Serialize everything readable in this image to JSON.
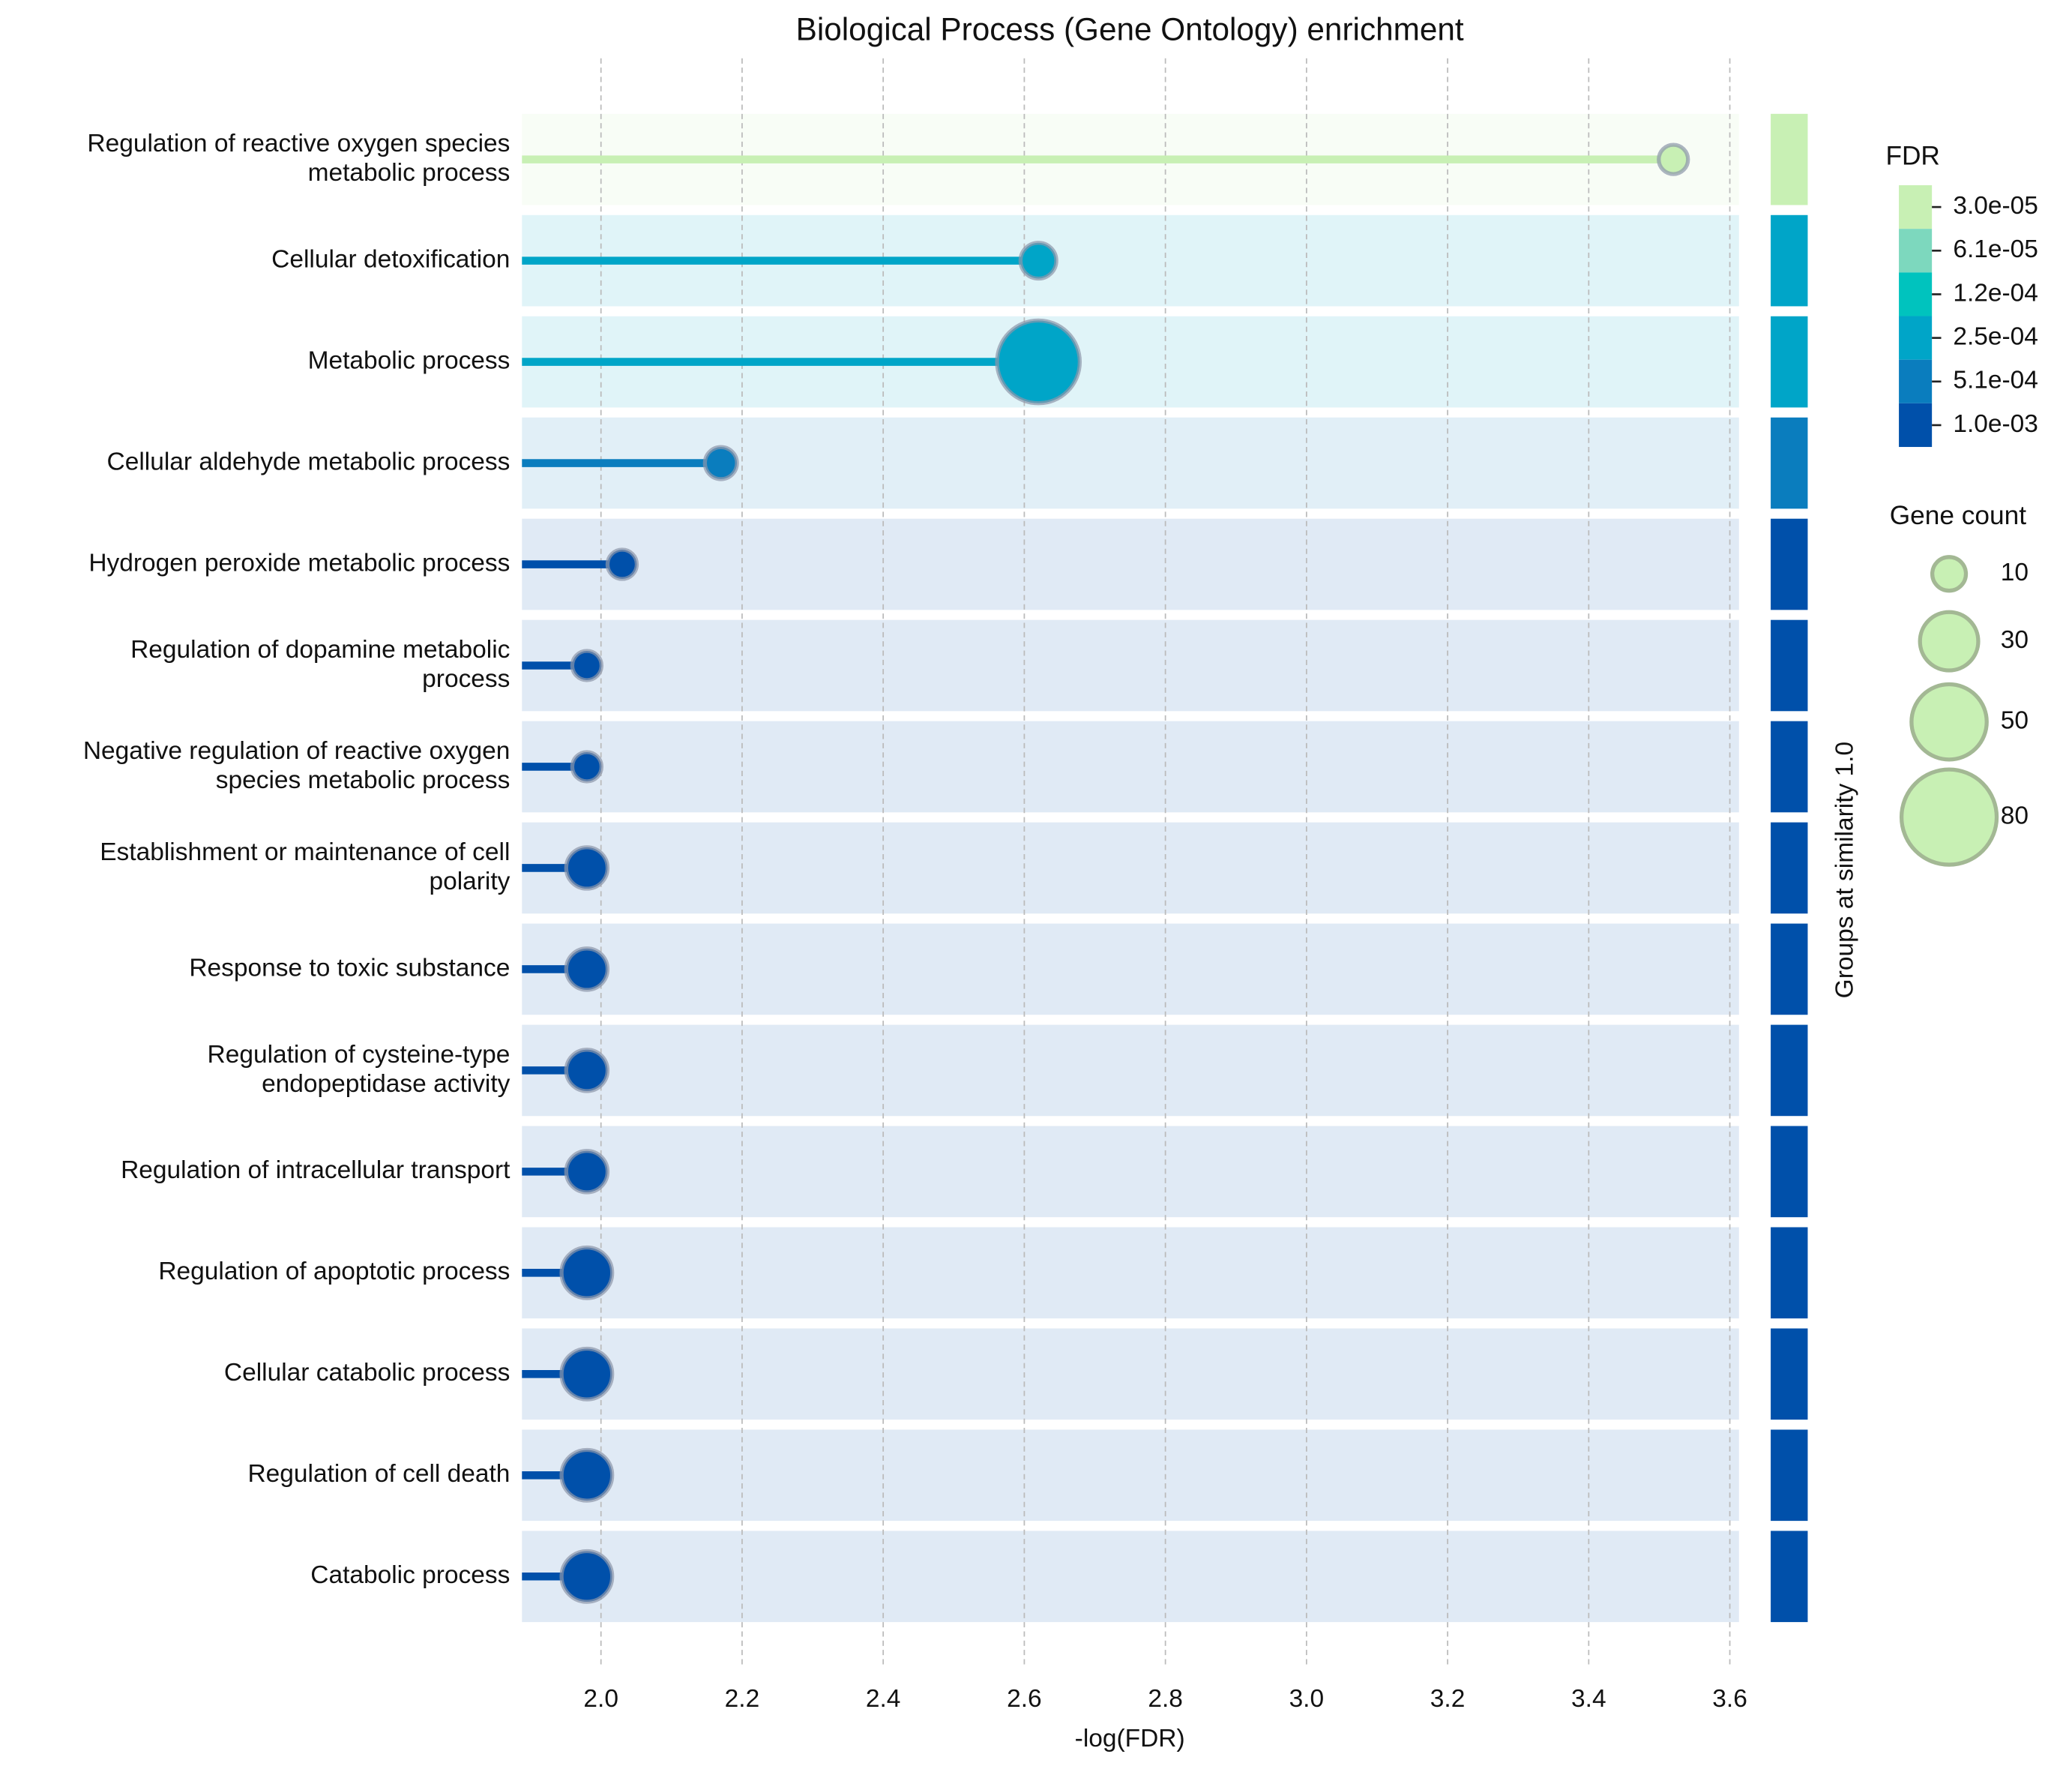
{
  "chart_data": {
    "type": "lollipop",
    "title": "Biological Process (Gene Ontology) enrichment",
    "xlabel": "-log(FDR)",
    "side_label": "Groups at similarity 1.0",
    "categories": [
      "Regulation of reactive oxygen species\nmetabolic process",
      "Cellular detoxification",
      "Metabolic process",
      "Cellular aldehyde metabolic process",
      "Hydrogen peroxide metabolic process",
      "Regulation of dopamine metabolic\nprocess",
      "Negative regulation of reactive oxygen\nspecies metabolic process",
      "Establishment or maintenance of cell\npolarity",
      "Response to toxic substance",
      "Regulation of cysteine-type\nendopeptidase activity",
      "Regulation of intracellular transport",
      "Regulation of apoptotic process",
      "Cellular catabolic process",
      "Regulation of cell death",
      "Catabolic process"
    ],
    "values": [
      3.52,
      2.62,
      2.62,
      2.17,
      2.03,
      1.98,
      1.98,
      1.98,
      1.98,
      1.98,
      1.98,
      1.98,
      1.98,
      1.98,
      1.98
    ],
    "sizes": [
      10,
      15,
      80,
      12,
      10,
      10,
      10,
      20,
      20,
      20,
      20,
      30,
      30,
      30,
      30
    ],
    "colors": [
      "#c8f0b4",
      "#00a5c8",
      "#00a5c8",
      "#0a7dbe",
      "#0050aa",
      "#0050aa",
      "#0050aa",
      "#0050aa",
      "#0050aa",
      "#0050aa",
      "#0050aa",
      "#0050aa",
      "#0050aa",
      "#0050aa",
      "#0050aa"
    ],
    "xlim": [
      1.888,
      3.613
    ],
    "xticks": [
      {
        "value": 2.0,
        "label": "2.0"
      },
      {
        "value": 2.2,
        "label": "2.2"
      },
      {
        "value": 2.4,
        "label": "2.4"
      },
      {
        "value": 2.6,
        "label": "2.6"
      },
      {
        "value": 2.8,
        "label": "2.8"
      },
      {
        "value": 3.0,
        "label": "3.0"
      },
      {
        "value": 3.2,
        "label": "3.2"
      },
      {
        "value": 3.4,
        "label": "3.4"
      },
      {
        "value": 3.6,
        "label": "3.6"
      }
    ],
    "grid": true,
    "color_legend": {
      "title": "FDR",
      "labels": [
        "3.0e-05",
        "6.1e-05",
        "1.2e-04",
        "2.5e-04",
        "5.1e-04",
        "1.0e-03"
      ],
      "colors": [
        "#c8f0b4",
        "#7dd8be",
        "#00c3be",
        "#00a5c8",
        "#0a7dbe",
        "#0050aa"
      ]
    },
    "size_legend": {
      "title": "Gene count",
      "values": [
        10,
        30,
        50,
        80
      ],
      "color": "#c8f0b4"
    }
  }
}
